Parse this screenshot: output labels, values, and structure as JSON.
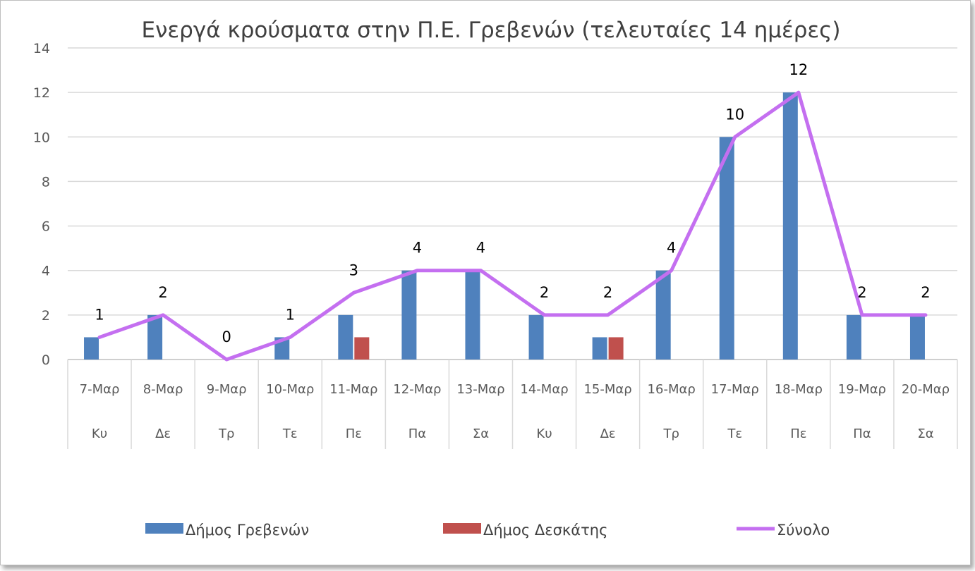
{
  "chart_data": {
    "type": "bar",
    "title": "Ενεργά κρούσματα στην Π.Ε. Γρεβενών (τελευταίες 14 ημέρες)",
    "categories": [
      "7-Μαρ",
      "8-Μαρ",
      "9-Μαρ",
      "10-Μαρ",
      "11-Μαρ",
      "12-Μαρ",
      "13-Μαρ",
      "14-Μαρ",
      "15-Μαρ",
      "16-Μαρ",
      "17-Μαρ",
      "18-Μαρ",
      "19-Μαρ",
      "20-Μαρ"
    ],
    "days": [
      "Κυ",
      "Δε",
      "Τρ",
      "Τε",
      "Πε",
      "Πα",
      "Σα",
      "Κυ",
      "Δε",
      "Τρ",
      "Τε",
      "Πε",
      "Πα",
      "Σα"
    ],
    "series": [
      {
        "name": "Δήμος Γρεβενών",
        "type": "bar",
        "color": "#4f81bd",
        "values": [
          1,
          2,
          0,
          1,
          2,
          4,
          4,
          2,
          1,
          4,
          10,
          12,
          2,
          2
        ]
      },
      {
        "name": "Δήμος Δεσκάτης",
        "type": "bar",
        "color": "#c0504d",
        "values": [
          0,
          0,
          0,
          0,
          1,
          0,
          0,
          0,
          1,
          0,
          0,
          0,
          0,
          0
        ]
      },
      {
        "name": "Σύνολο",
        "type": "line",
        "color": "#c46ff0",
        "values": [
          1,
          2,
          0,
          1,
          3,
          4,
          4,
          2,
          2,
          4,
          10,
          12,
          2,
          2
        ]
      }
    ],
    "ylim": [
      0,
      14
    ],
    "yticks": [
      "0",
      "2",
      "4",
      "6",
      "8",
      "10",
      "12",
      "14"
    ],
    "grid": true,
    "legend": "bottom"
  }
}
